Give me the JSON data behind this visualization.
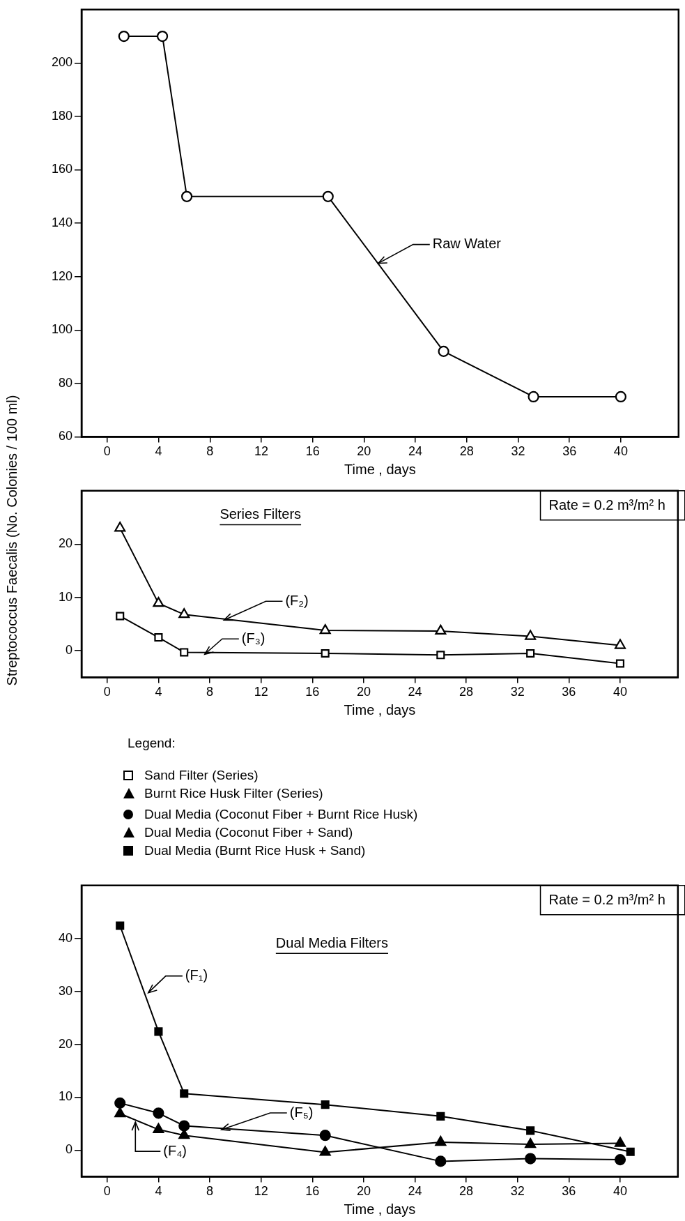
{
  "chart_data": [
    {
      "type": "line",
      "xlabel": "Time , days",
      "xlim": [
        -2,
        44.5
      ],
      "xticks": [
        0,
        4,
        8,
        12,
        16,
        20,
        24,
        28,
        32,
        36,
        40
      ],
      "ylim": [
        60,
        220
      ],
      "yticks": [
        60,
        80,
        100,
        120,
        140,
        160,
        180,
        200
      ],
      "grid": false,
      "marker": "circle",
      "series": [
        {
          "color": "#000000",
          "x": [
            1.3,
            4.3,
            6.2,
            17.2,
            26.2,
            33.2,
            40
          ],
          "values": [
            210,
            210,
            150,
            150,
            92,
            75,
            75
          ]
        }
      ],
      "annotations": [
        {
          "text": "Raw Water",
          "x": 21,
          "y": 125.5
        }
      ]
    },
    {
      "type": "line",
      "xlabel": "Time , days",
      "ylabel": "Streptococcus Faecalis (No. Colonies / 100 ml)",
      "xlim": [
        -2,
        44.5
      ],
      "xticks": [
        0,
        4,
        8,
        12,
        16,
        20,
        24,
        28,
        32,
        36,
        40
      ],
      "ylim": [
        -5,
        30
      ],
      "yticks": [
        0,
        10,
        20
      ],
      "grid": false,
      "legend": "bottom",
      "legend_title": "Legend:",
      "series": [
        {
          "name": "Sand Filter (Series)",
          "marker": "square",
          "color": "#000000",
          "x": [
            1,
            4,
            6,
            17,
            26,
            33,
            40
          ],
          "values": [
            6.5,
            2.5,
            -0.3,
            -0.5,
            -0.8,
            -0.5,
            -2.4
          ]
        },
        {
          "name": "Burnt Rice Husk Filter (Series)",
          "marker": "triangle",
          "color": "#000000",
          "x": [
            1,
            4,
            6,
            17,
            26,
            33,
            40
          ],
          "values": [
            23,
            8.9,
            6.8,
            3.8,
            3.7,
            2.7,
            1.0
          ]
        }
      ],
      "annotations": [
        "Rate = 0.2 m³/m² h",
        "Series Filters",
        {
          "text": "(F₂)",
          "x": 9,
          "y": 6.0
        },
        {
          "text": "(F₃)",
          "x": 7.5,
          "y": -0.4
        }
      ]
    },
    {
      "type": "line",
      "xlabel": "Time , days",
      "xlim": [
        -2,
        44.5
      ],
      "xticks": [
        0,
        4,
        8,
        12,
        16,
        20,
        24,
        28,
        32,
        36,
        40
      ],
      "ylim": [
        -5,
        50
      ],
      "yticks": [
        0,
        10,
        20,
        30,
        40
      ],
      "grid": false,
      "legend": "top",
      "series": [
        {
          "name": "Dual Media (Coconut Fiber + Burnt Rice Husk)",
          "marker": "circle",
          "color": "#000000",
          "x": [
            1,
            4,
            6,
            17,
            26,
            33,
            40
          ],
          "values": [
            8.9,
            7.0,
            4.6,
            2.8,
            -2.1,
            -1.6,
            -1.8
          ]
        },
        {
          "name": "Dual Media (Coconut Fiber + Sand)",
          "marker": "triangle",
          "color": "#000000",
          "x": [
            1,
            4,
            6,
            17,
            26,
            33,
            40
          ],
          "values": [
            6.9,
            3.9,
            2.8,
            -0.4,
            1.5,
            1.1,
            1.3
          ]
        },
        {
          "name": "Dual Media (Burnt Rice Husk + Sand)",
          "marker": "square",
          "color": "#000000",
          "x": [
            1,
            4,
            6,
            17,
            26,
            33,
            40.8
          ],
          "values": [
            42.4,
            22.4,
            10.7,
            8.6,
            6.4,
            3.7,
            -0.3
          ]
        }
      ],
      "annotations": [
        "Rate = 0.2 m³/m² h",
        "Dual Media Filters",
        {
          "text": "(F₁)",
          "x": 3.1,
          "y": 30
        },
        {
          "text": "(F₅)",
          "x": 8.8,
          "y": 4.14
        },
        {
          "text": "(F₄)",
          "x": 2.2,
          "y": 5.7
        }
      ]
    }
  ]
}
